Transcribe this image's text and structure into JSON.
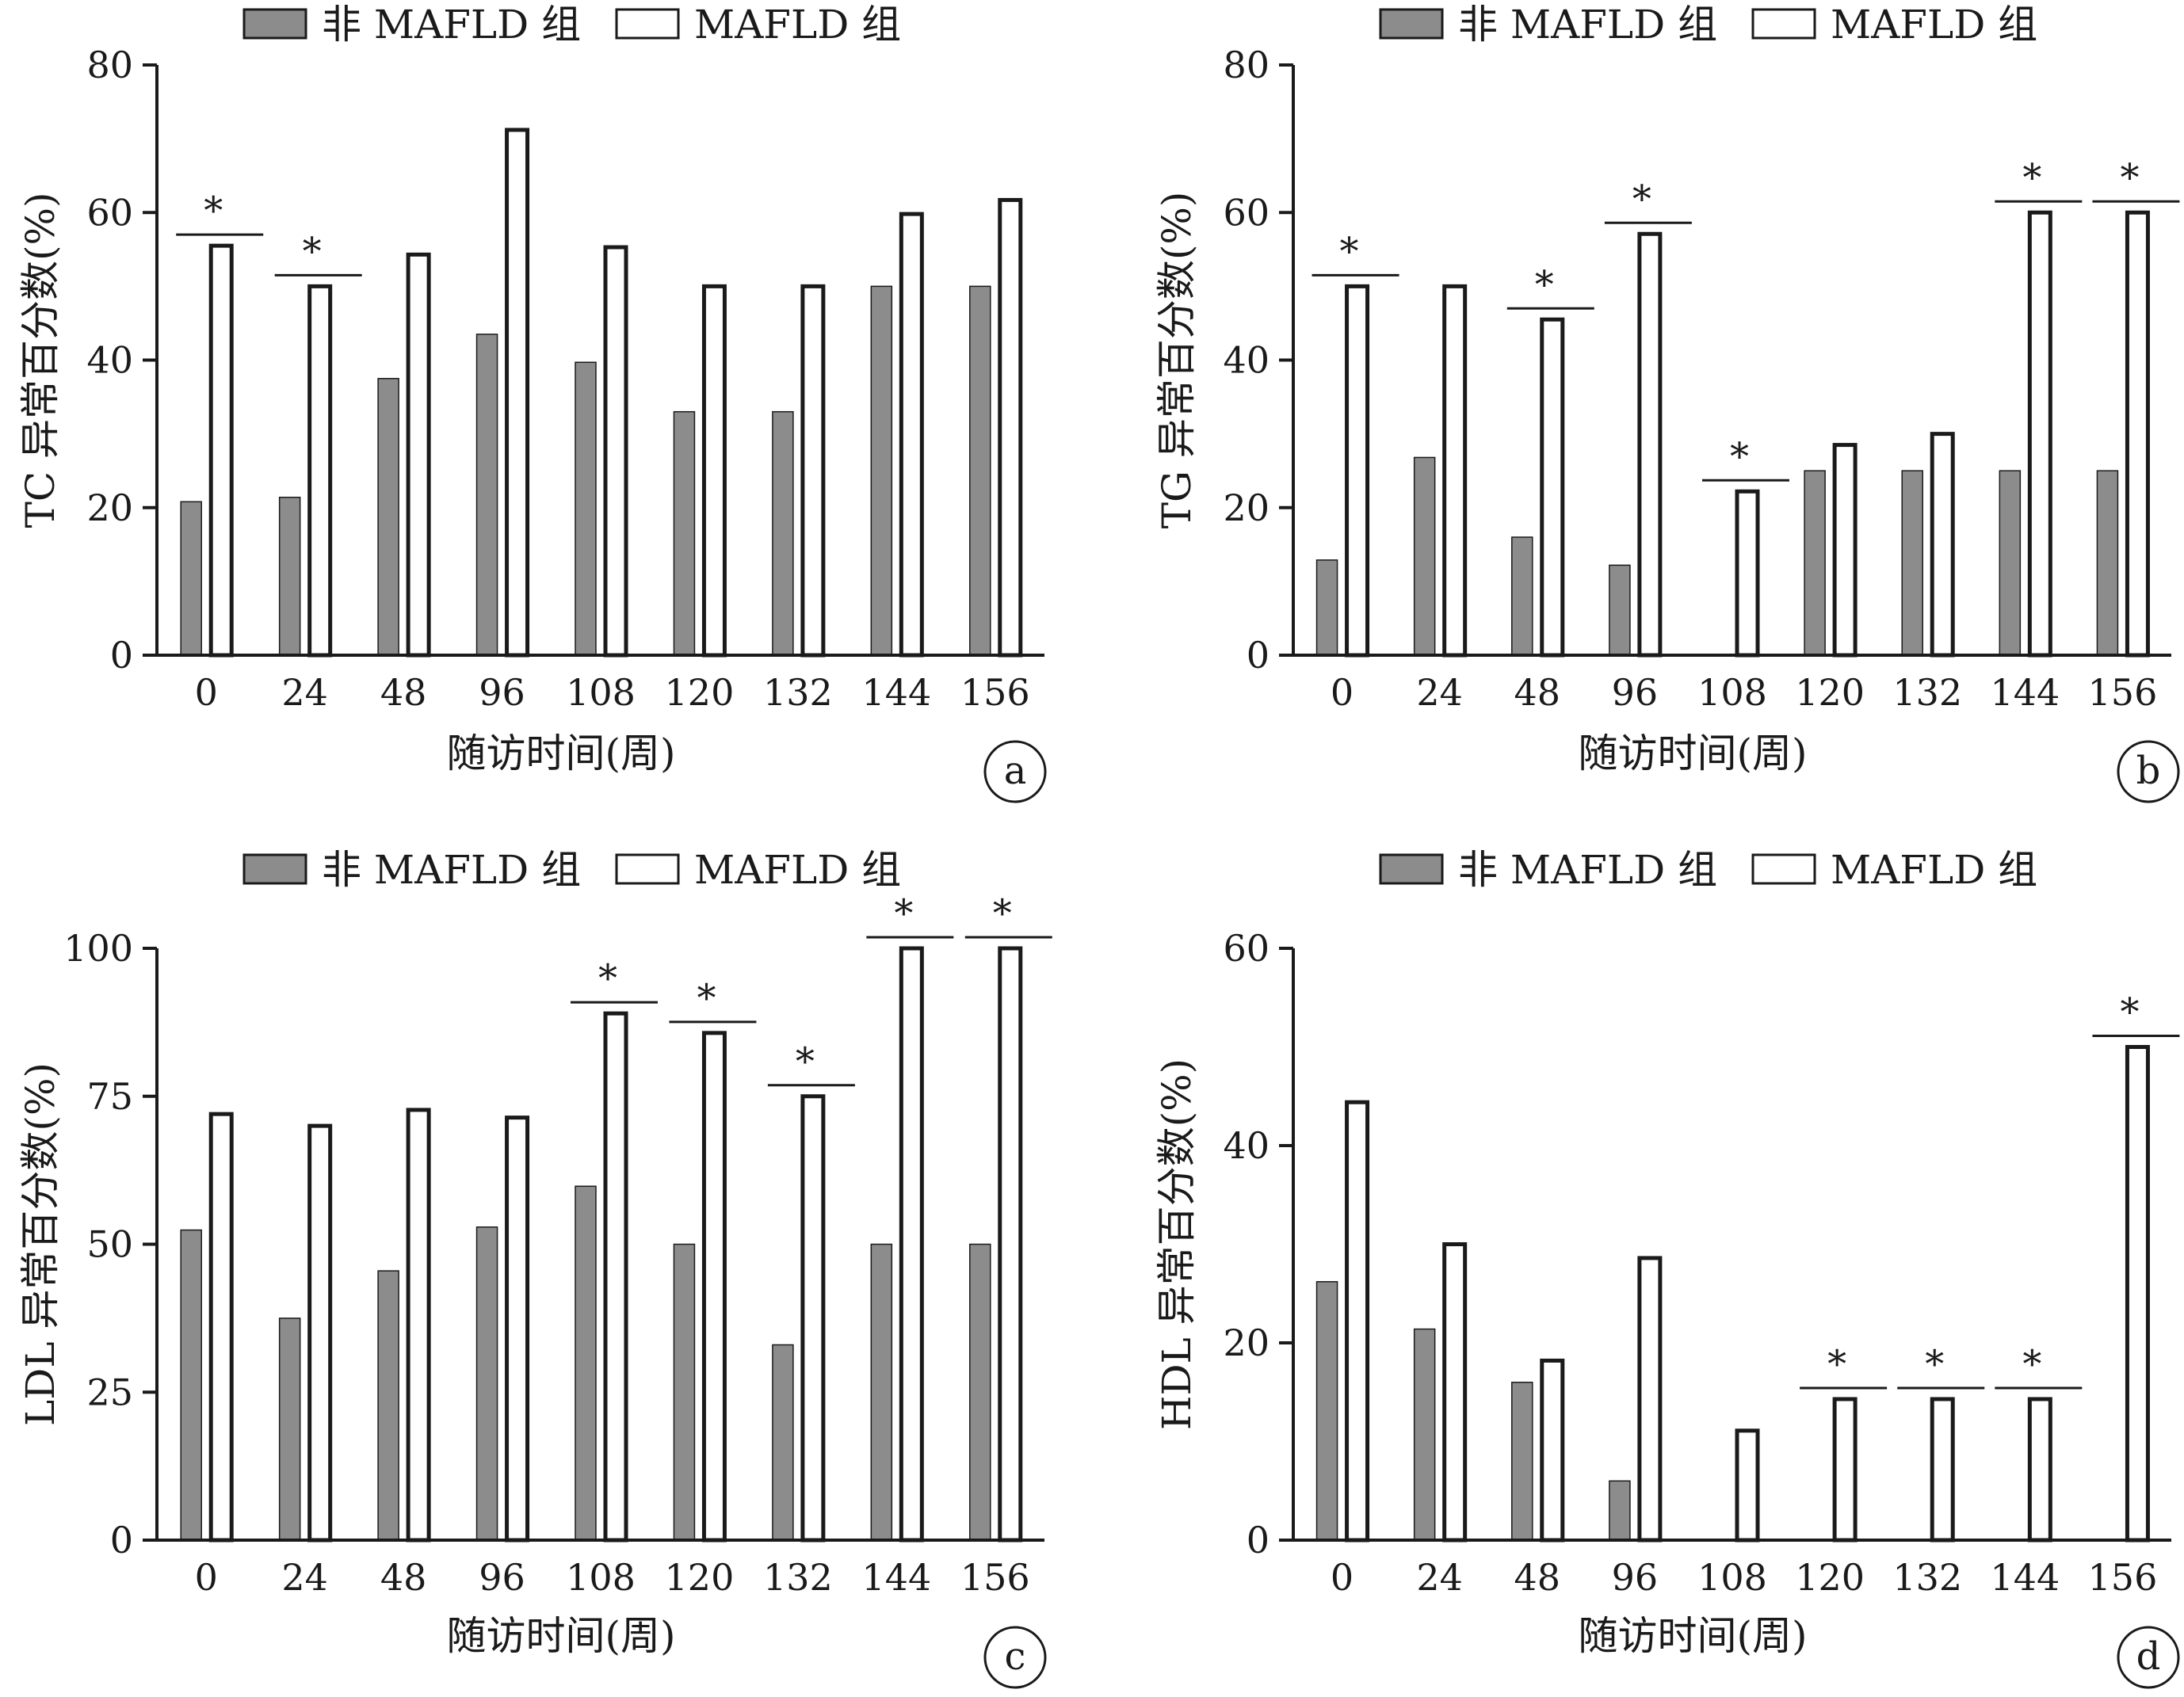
{
  "colors": {
    "non_mafld_fill": "#8c8c8c",
    "mafld_fill": "#ffffff",
    "stroke": "#1a1a1a"
  },
  "chart_data": [
    {
      "type": "bar",
      "panel": "a",
      "ylabel": "TC 异常百分数(%)",
      "xlabel": "随访时间(周)",
      "ylim": [
        0,
        80
      ],
      "yticks": [
        "0",
        "20",
        "40",
        "60",
        "80"
      ],
      "categories": [
        "0",
        "24",
        "48",
        "96",
        "108",
        "120",
        "132",
        "144",
        "156"
      ],
      "legend": [
        "非 MAFLD 组",
        "MAFLD 组"
      ],
      "legend_position": "top",
      "series": [
        {
          "name": "非 MAFLD 组",
          "values": [
            20.8,
            21.4,
            37.5,
            43.5,
            39.7,
            33.0,
            33.0,
            50.0,
            50.0
          ]
        },
        {
          "name": "MAFLD 组",
          "values": [
            55.5,
            50.0,
            54.3,
            71.2,
            55.3,
            50.0,
            50.0,
            59.8,
            61.7
          ]
        }
      ],
      "significance": [
        "*",
        "*",
        "",
        "",
        "",
        "",
        "",
        "",
        ""
      ]
    },
    {
      "type": "bar",
      "panel": "b",
      "ylabel": "TG 异常百分数(%)",
      "xlabel": "随访时间(周)",
      "ylim": [
        0,
        80
      ],
      "yticks": [
        "0",
        "20",
        "40",
        "60",
        "80"
      ],
      "categories": [
        "0",
        "24",
        "48",
        "96",
        "108",
        "120",
        "132",
        "144",
        "156"
      ],
      "legend": [
        "非 MAFLD 组",
        "MAFLD 组"
      ],
      "legend_position": "top",
      "series": [
        {
          "name": "非 MAFLD 组",
          "values": [
            12.9,
            26.8,
            16.0,
            12.2,
            0,
            25.0,
            25.0,
            25.0,
            25.0
          ]
        },
        {
          "name": "MAFLD 组",
          "values": [
            50.0,
            50.0,
            45.5,
            57.1,
            22.2,
            28.5,
            30.0,
            60.0,
            60.0
          ]
        }
      ],
      "significance": [
        "*",
        "",
        "*",
        "*",
        "*",
        "",
        "",
        "*",
        "*"
      ]
    },
    {
      "type": "bar",
      "panel": "c",
      "ylabel": "LDL 异常百分数(%)",
      "xlabel": "随访时间(周)",
      "ylim": [
        0,
        100
      ],
      "yticks": [
        "0",
        "25",
        "50",
        "75",
        "100"
      ],
      "categories": [
        "0",
        "24",
        "48",
        "96",
        "108",
        "120",
        "132",
        "144",
        "156"
      ],
      "legend": [
        "非 MAFLD 组",
        "MAFLD 组"
      ],
      "legend_position": "top",
      "series": [
        {
          "name": "非 MAFLD 组",
          "values": [
            52.4,
            37.5,
            45.5,
            52.9,
            59.8,
            50.0,
            33.0,
            50.0,
            50.0
          ]
        },
        {
          "name": "MAFLD 组",
          "values": [
            72.0,
            70.0,
            72.7,
            71.4,
            89.0,
            85.7,
            75.0,
            100,
            100
          ]
        }
      ],
      "significance": [
        "",
        "",
        "",
        "",
        "*",
        "*",
        "*",
        "*",
        "*"
      ]
    },
    {
      "type": "bar",
      "panel": "d",
      "ylabel": "HDL 异常百分数(%)",
      "xlabel": "随访时间(周)",
      "ylim": [
        0,
        60
      ],
      "yticks": [
        "0",
        "20",
        "40",
        "60"
      ],
      "categories": [
        "0",
        "24",
        "48",
        "96",
        "108",
        "120",
        "132",
        "144",
        "156"
      ],
      "legend": [
        "非 MAFLD 组",
        "MAFLD 组"
      ],
      "legend_position": "top",
      "series": [
        {
          "name": "非 MAFLD 组",
          "values": [
            26.2,
            21.4,
            16.0,
            6.0,
            0,
            0,
            0,
            0,
            0
          ]
        },
        {
          "name": "MAFLD 组",
          "values": [
            44.4,
            30.0,
            18.2,
            28.6,
            11.1,
            14.3,
            14.3,
            14.3,
            50.0
          ]
        }
      ],
      "significance": [
        "",
        "",
        "",
        "",
        "",
        "*",
        "*",
        "*",
        "*"
      ]
    }
  ]
}
